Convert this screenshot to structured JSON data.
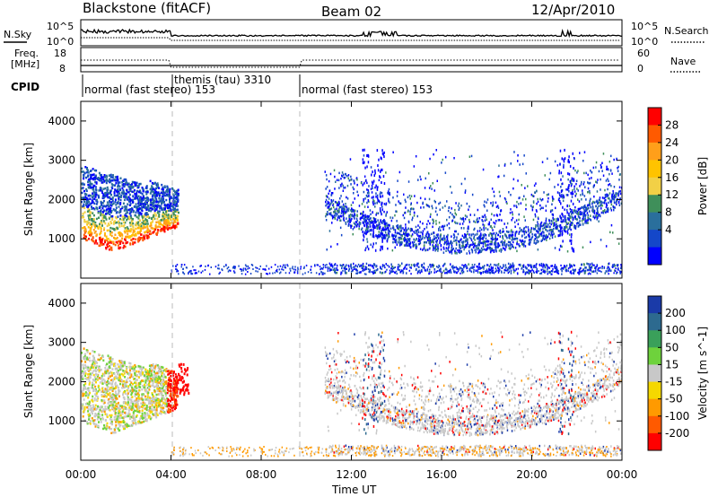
{
  "header": {
    "station": "Blackstone (fitACF)",
    "beam": "Beam 02",
    "date": "12/Apr/2010"
  },
  "noise_panel": {
    "left_label": "N.Sky",
    "right_label": "N.Search",
    "left_ticks": [
      "10^5",
      "10^0"
    ],
    "right_ticks": [
      "10^5",
      "10^0"
    ]
  },
  "freq_panel": {
    "left_label_1": "Freq.",
    "left_label_2": "[MHz]",
    "left_ticks": [
      "18",
      "8"
    ],
    "right_label": "Nave",
    "right_ticks": [
      "60",
      "0"
    ]
  },
  "cpid_panel": {
    "label": "CPID",
    "segments": [
      {
        "start_hour": 0,
        "end_hour": 4.0,
        "text": "normal (fast stereo) 153"
      },
      {
        "start_hour": 4.0,
        "end_hour": 9.7,
        "text": "themis (tau) 3310"
      },
      {
        "start_hour": 9.7,
        "end_hour": 24,
        "text": "normal (fast stereo) 153"
      }
    ]
  },
  "x_axis": {
    "label": "Time UT",
    "ticks": [
      "00:00",
      "04:00",
      "08:00",
      "12:00",
      "16:00",
      "20:00",
      "00:00"
    ]
  },
  "power_colorbar": {
    "label": "Power [dB]",
    "ticks": [
      "28",
      "24",
      "20",
      "16",
      "12",
      "8",
      "4"
    ],
    "colors": [
      "#ff0000",
      "#ff5a00",
      "#ff9f1a",
      "#ffc300",
      "#f2d046",
      "#3f8f5a",
      "#2a6f9c",
      "#1447c9",
      "#0000ff"
    ]
  },
  "velocity_colorbar": {
    "label": "Velocity [m s^-1]",
    "ticks": [
      "200",
      "100",
      "50",
      "15",
      "-15",
      "-50",
      "-100",
      "-200"
    ],
    "colors": [
      "#1a3aa8",
      "#2d6a8f",
      "#3aa05a",
      "#6ed23c",
      "#c8c8c8",
      "#f5d800",
      "#ff9a00",
      "#ff5a00",
      "#ff0000"
    ]
  },
  "chart_data": {
    "type": "heatmap",
    "title": "",
    "xlabel": "Time UT",
    "ylabel": "Slant Range [km]",
    "xlim": [
      0,
      24
    ],
    "ylim": [
      0,
      4500
    ],
    "yticks": [
      "1000",
      "2000",
      "3000",
      "4000"
    ],
    "panels": [
      {
        "name": "power",
        "colorbar_label": "Power [dB]",
        "blobs": [
          {
            "t0": 0.0,
            "t1": 4.3,
            "r0": 700,
            "r1": 3000,
            "level": "mixed_high"
          },
          {
            "t0": 10.8,
            "t1": 24.0,
            "r0": 700,
            "r1": 3200,
            "level": "low"
          }
        ]
      },
      {
        "name": "velocity",
        "colorbar_label": "Velocity [m s^-1]",
        "blobs": [
          {
            "t0": 0.0,
            "t1": 4.8,
            "r0": 700,
            "r1": 2900,
            "level": "mixed"
          },
          {
            "t0": 10.8,
            "t1": 24.0,
            "r0": 700,
            "r1": 3200,
            "level": "near_zero"
          }
        ]
      }
    ]
  }
}
